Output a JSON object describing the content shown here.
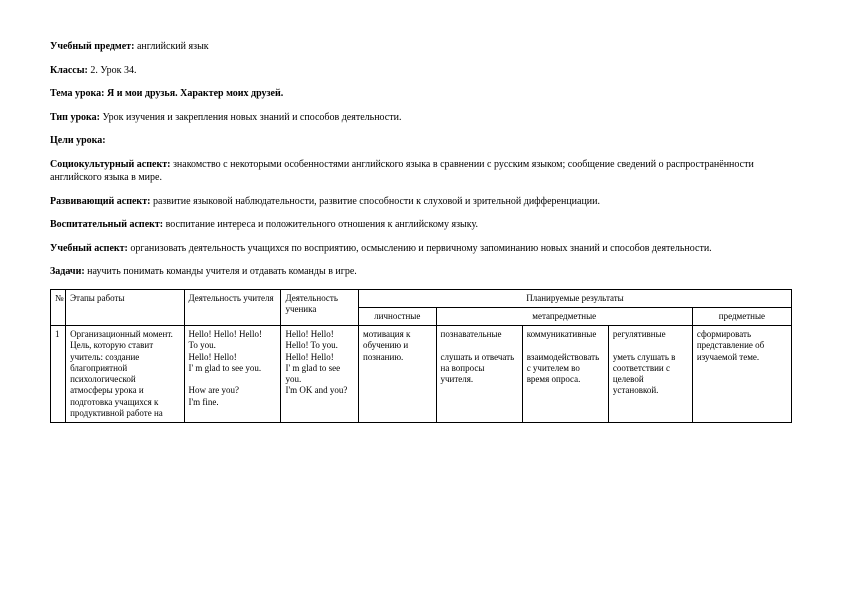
{
  "header": {
    "subject_label": "Учебный предмет:",
    "subject_value": "английский язык",
    "class_label": "Классы:",
    "class_value": "2. Урок 34.",
    "topic_label": "Тема урока:",
    "topic_value": "Я и мои друзья. Характер моих друзей.",
    "type_label": "Тип урока:",
    "type_value": "Урок изучения и закрепления новых знаний и способов деятельности.",
    "goals_label": "Цели урока:",
    "socio_label": "Социокультурный аспект:",
    "socio_value": "знакомство с некоторыми особенностями английского языка в сравнении с русским языком; сообщение сведений о распространённости английского языка в мире.",
    "dev_label": "Развивающий аспект:",
    "dev_value": "развитие языковой наблюдательности, развитие способности к слуховой и зрительной дифференциации.",
    "edu_label": "Воспитательный аспект:",
    "edu_value": "воспитание интереса и положительного отношения к английскому языку.",
    "learn_label": "Учебный аспект:",
    "learn_value": "организовать деятельность учащихся по восприятию, осмыслению и первичному запоминанию новых знаний и способов деятельности.",
    "tasks_label": "Задачи:",
    "tasks_value": "научить понимать команды учителя и отдавать команды в игре."
  },
  "table": {
    "head_num": "№",
    "head_stage": "Этапы работы",
    "head_teacher": "Деятельность учителя",
    "head_pupil": "Деятельность ученика",
    "head_results": "Планируемые результаты",
    "head_personal": "личностные",
    "head_meta": "метапредметные",
    "head_subject": "предметные",
    "row1": {
      "num": "1",
      "stage": "Организационный момент.\nЦель, которую ставит учитель: создание благоприятной психологической атмосферы урока и подготовка учащихся к продуктивной работе на",
      "teacher": "Hello! Hello! Hello!\nTo you.\nHello! Hello!\nI' m glad to see you.\n\nHow are you?\nI'm fine.",
      "pupil": "Hello! Hello!\nHello! To you.\nHello! Hello!\nI' m glad to see you.\nI'm OK and you?",
      "personal": "мотивация к обучению и познанию.",
      "meta1": "познавательные\n\nслушать и отвечать на вопросы учителя.",
      "meta2": "коммуникативные\n\nвзаимодействовать с учителем во время опроса.",
      "meta3": "регулятивные\n\nуметь слушать в соответствии с целевой установкой.",
      "subject": "сформировать представление об изучаемой теме."
    }
  }
}
